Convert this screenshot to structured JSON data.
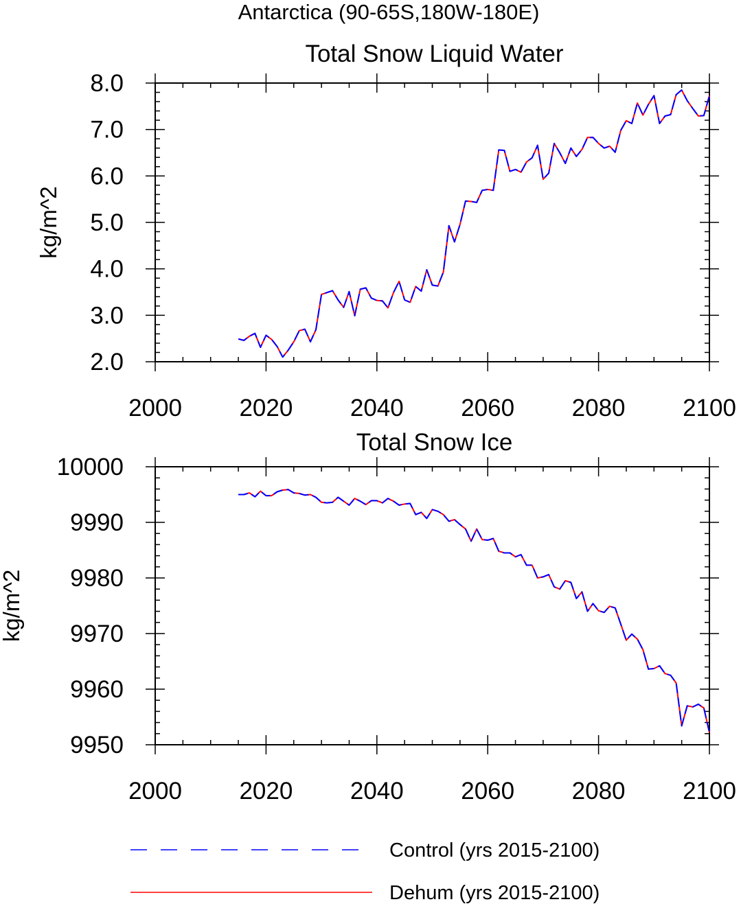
{
  "figure": {
    "title": "Antarctica (90-65S,180W-180E)"
  },
  "chart_data": [
    {
      "type": "line",
      "title": "Total Snow Liquid Water",
      "xlabel": "",
      "ylabel": "kg/m^2",
      "xlim": [
        2000,
        2100
      ],
      "ylim": [
        2.0,
        8.0
      ],
      "xticks": [
        2000,
        2020,
        2040,
        2060,
        2080,
        2100
      ],
      "xtick_labels": [
        "2000",
        "2020",
        "2040",
        "2060",
        "2080",
        "2100"
      ],
      "yticks": [
        2.0,
        3.0,
        4.0,
        5.0,
        6.0,
        7.0,
        8.0
      ],
      "ytick_labels": [
        "2.0",
        "3.0",
        "4.0",
        "5.0",
        "6.0",
        "7.0",
        "8.0"
      ],
      "grid": false,
      "x": [
        2015,
        2016,
        2017,
        2018,
        2019,
        2020,
        2021,
        2022,
        2023,
        2024,
        2025,
        2026,
        2027,
        2028,
        2029,
        2030,
        2031,
        2032,
        2033,
        2034,
        2035,
        2036,
        2037,
        2038,
        2039,
        2040,
        2041,
        2042,
        2043,
        2044,
        2045,
        2046,
        2047,
        2048,
        2049,
        2050,
        2051,
        2052,
        2053,
        2054,
        2055,
        2056,
        2057,
        2058,
        2059,
        2060,
        2061,
        2062,
        2063,
        2064,
        2065,
        2066,
        2067,
        2068,
        2069,
        2070,
        2071,
        2072,
        2073,
        2074,
        2075,
        2076,
        2077,
        2078,
        2079,
        2080,
        2081,
        2082,
        2083,
        2084,
        2085,
        2086,
        2087,
        2088,
        2089,
        2090,
        2091,
        2092,
        2093,
        2094,
        2095,
        2096,
        2097,
        2098,
        2099,
        2100
      ],
      "series": [
        {
          "name": "Control (yrs 2015-2100)",
          "color": "#0000ff",
          "style": "dashed",
          "values": [
            2.49,
            2.46,
            2.55,
            2.61,
            2.31,
            2.57,
            2.48,
            2.33,
            2.1,
            2.25,
            2.43,
            2.67,
            2.7,
            2.43,
            2.69,
            3.45,
            3.49,
            3.53,
            3.33,
            3.17,
            3.51,
            2.99,
            3.56,
            3.59,
            3.37,
            3.32,
            3.31,
            3.16,
            3.49,
            3.73,
            3.33,
            3.28,
            3.62,
            3.52,
            3.98,
            3.65,
            3.63,
            3.93,
            4.93,
            4.58,
            4.96,
            5.46,
            5.45,
            5.43,
            5.69,
            5.71,
            5.69,
            6.56,
            6.55,
            6.1,
            6.14,
            6.08,
            6.3,
            6.39,
            6.66,
            5.93,
            6.06,
            6.7,
            6.5,
            6.27,
            6.6,
            6.42,
            6.57,
            6.83,
            6.83,
            6.7,
            6.6,
            6.64,
            6.51,
            6.98,
            7.19,
            7.13,
            7.57,
            7.31,
            7.54,
            7.73,
            7.13,
            7.29,
            7.32,
            7.75,
            7.85,
            7.62,
            7.45,
            7.29,
            7.3,
            7.73
          ]
        },
        {
          "name": "Dehum (yrs 2015-2100)",
          "color": "#ff0000",
          "style": "solid",
          "values": [
            2.49,
            2.46,
            2.55,
            2.61,
            2.31,
            2.57,
            2.48,
            2.33,
            2.1,
            2.25,
            2.43,
            2.67,
            2.7,
            2.43,
            2.69,
            3.45,
            3.49,
            3.53,
            3.33,
            3.17,
            3.51,
            2.99,
            3.56,
            3.59,
            3.37,
            3.32,
            3.31,
            3.16,
            3.49,
            3.73,
            3.33,
            3.28,
            3.62,
            3.52,
            3.98,
            3.65,
            3.63,
            3.93,
            4.93,
            4.58,
            4.96,
            5.46,
            5.45,
            5.43,
            5.69,
            5.71,
            5.69,
            6.56,
            6.55,
            6.1,
            6.14,
            6.08,
            6.3,
            6.39,
            6.66,
            5.93,
            6.06,
            6.7,
            6.5,
            6.27,
            6.6,
            6.42,
            6.57,
            6.83,
            6.83,
            6.7,
            6.6,
            6.64,
            6.51,
            6.98,
            7.19,
            7.13,
            7.57,
            7.31,
            7.54,
            7.73,
            7.13,
            7.29,
            7.32,
            7.75,
            7.85,
            7.62,
            7.45,
            7.29,
            7.3,
            7.73
          ]
        }
      ]
    },
    {
      "type": "line",
      "title": "Total Snow Ice",
      "xlabel": "",
      "ylabel": "kg/m^2",
      "xlim": [
        2000,
        2100
      ],
      "ylim": [
        9950,
        10000
      ],
      "xticks": [
        2000,
        2020,
        2040,
        2060,
        2080,
        2100
      ],
      "xtick_labels": [
        "2000",
        "2020",
        "2040",
        "2060",
        "2080",
        "2100"
      ],
      "yticks": [
        9950,
        9960,
        9970,
        9980,
        9990,
        10000
      ],
      "ytick_labels": [
        "9950",
        "9960",
        "9970",
        "9980",
        "9990",
        "10000"
      ],
      "grid": false,
      "x": [
        2015,
        2016,
        2017,
        2018,
        2019,
        2020,
        2021,
        2022,
        2023,
        2024,
        2025,
        2026,
        2027,
        2028,
        2029,
        2030,
        2031,
        2032,
        2033,
        2034,
        2035,
        2036,
        2037,
        2038,
        2039,
        2040,
        2041,
        2042,
        2043,
        2044,
        2045,
        2046,
        2047,
        2048,
        2049,
        2050,
        2051,
        2052,
        2053,
        2054,
        2055,
        2056,
        2057,
        2058,
        2059,
        2060,
        2061,
        2062,
        2063,
        2064,
        2065,
        2066,
        2067,
        2068,
        2069,
        2070,
        2071,
        2072,
        2073,
        2074,
        2075,
        2076,
        2077,
        2078,
        2079,
        2080,
        2081,
        2082,
        2083,
        2084,
        2085,
        2086,
        2087,
        2088,
        2089,
        2090,
        2091,
        2092,
        2093,
        2094,
        2095,
        2096,
        2097,
        2098,
        2099,
        2100
      ],
      "series": [
        {
          "name": "Control (yrs 2015-2100)",
          "color": "#0000ff",
          "style": "dashed",
          "values": [
            9995.0,
            9995.0,
            9995.3,
            9994.6,
            9995.6,
            9994.8,
            9994.8,
            9995.5,
            9995.8,
            9995.9,
            9995.3,
            9995.2,
            9994.9,
            9995.0,
            9994.5,
            9993.6,
            9993.5,
            9993.6,
            9994.5,
            9993.8,
            9993.1,
            9994.3,
            9993.8,
            9993.2,
            9993.9,
            9993.9,
            9993.5,
            9994.3,
            9993.8,
            9993.1,
            9993.3,
            9993.4,
            9991.4,
            9991.8,
            9990.7,
            9992.3,
            9992.0,
            9991.4,
            9990.2,
            9990.5,
            9989.6,
            9988.8,
            9986.6,
            9988.8,
            9986.9,
            9986.8,
            9987.1,
            9984.8,
            9984.5,
            9984.5,
            9983.8,
            9984.2,
            9982.3,
            9982.3,
            9980.0,
            9980.2,
            9980.6,
            9978.4,
            9978.0,
            9979.5,
            9979.2,
            9976.3,
            9977.5,
            9974.0,
            9975.4,
            9974.1,
            9973.8,
            9974.9,
            9974.6,
            9971.7,
            9968.8,
            9969.9,
            9969.0,
            9967.1,
            9963.6,
            9963.7,
            9964.2,
            9962.8,
            9962.5,
            9961.1,
            9953.4,
            9957.0,
            9956.8,
            9957.3,
            9956.6,
            9952.2
          ]
        },
        {
          "name": "Dehum (yrs 2015-2100)",
          "color": "#ff0000",
          "style": "solid",
          "values": [
            9995.0,
            9995.0,
            9995.3,
            9994.6,
            9995.6,
            9994.8,
            9994.8,
            9995.5,
            9995.8,
            9995.9,
            9995.3,
            9995.2,
            9994.9,
            9995.0,
            9994.5,
            9993.6,
            9993.5,
            9993.6,
            9994.5,
            9993.8,
            9993.1,
            9994.3,
            9993.8,
            9993.2,
            9993.9,
            9993.9,
            9993.5,
            9994.3,
            9993.8,
            9993.1,
            9993.3,
            9993.4,
            9991.4,
            9991.8,
            9990.7,
            9992.3,
            9992.0,
            9991.4,
            9990.2,
            9990.5,
            9989.6,
            9988.8,
            9986.6,
            9988.8,
            9986.9,
            9986.8,
            9987.1,
            9984.8,
            9984.5,
            9984.5,
            9983.8,
            9984.2,
            9982.3,
            9982.3,
            9980.0,
            9980.2,
            9980.6,
            9978.4,
            9978.0,
            9979.5,
            9979.2,
            9976.3,
            9977.5,
            9974.0,
            9975.4,
            9974.1,
            9973.8,
            9974.9,
            9974.6,
            9971.7,
            9968.8,
            9969.9,
            9969.0,
            9967.1,
            9963.6,
            9963.7,
            9964.2,
            9962.8,
            9962.5,
            9961.1,
            9953.4,
            9957.0,
            9956.8,
            9957.3,
            9956.6,
            9952.2
          ]
        }
      ]
    }
  ],
  "legend": {
    "placement": "bottom",
    "items": [
      {
        "label": "Control (yrs 2015-2100)",
        "color": "#0000ff",
        "style": "dashed"
      },
      {
        "label": "Dehum (yrs 2015-2100)",
        "color": "#ff0000",
        "style": "solid"
      }
    ]
  }
}
